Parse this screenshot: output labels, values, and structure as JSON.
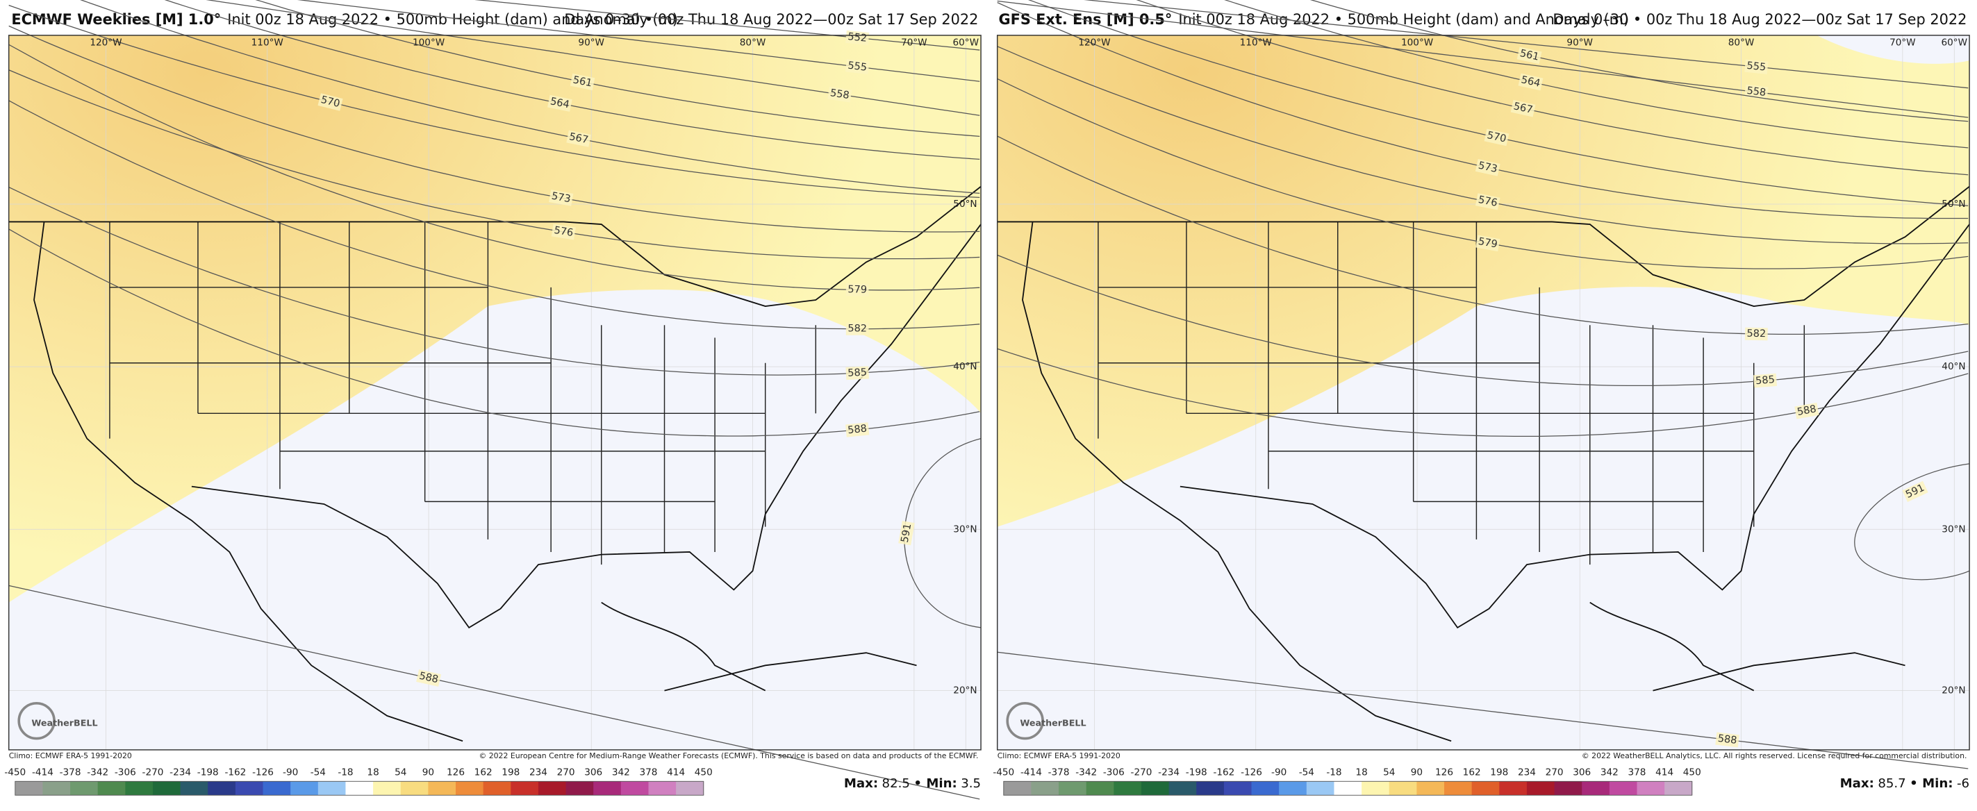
{
  "panels": [
    {
      "title_model": "ECMWF Weeklies [M] 1.0°",
      "title_desc": "Init 00z 18 Aug 2022 • 500mb Height (dam) and Anomaly (m)",
      "title_range": "Days 0–30 • 00z Thu 18 Aug 2022—00z Sat 17 Sep 2022",
      "longitudes": [
        "120°W",
        "110°W",
        "100°W",
        "90°W",
        "80°W",
        "70°W",
        "60°W"
      ],
      "latitudes": [
        "50°N",
        "40°N",
        "30°N",
        "20°N"
      ],
      "contour_labels": [
        552,
        555,
        558,
        561,
        564,
        567,
        570,
        573,
        576,
        579,
        582,
        585,
        588,
        591,
        588
      ],
      "logo": "WeatherBELL",
      "climo": "Climo: ECMWF ERA-5 1991-2020",
      "copyright": "© 2022 European Centre for Medium-Range Weather Forecasts (ECMWF). This service is based on data and products of the ECMWF.",
      "max_label": "Max:",
      "max": 82.5,
      "min_label": "• Min:",
      "min": 3.5
    },
    {
      "title_model": "GFS Ext. Ens [M] 0.5°",
      "title_desc": "Init 00z 18 Aug 2022 • 500mb Height (dam) and Anomaly (m)",
      "title_range": "Days 0–30 • 00z Thu 18 Aug 2022—00z Sat 17 Sep 2022",
      "longitudes": [
        "120°W",
        "110°W",
        "100°W",
        "90°W",
        "80°W",
        "70°W",
        "60°W"
      ],
      "latitudes": [
        "50°N",
        "40°N",
        "30°N",
        "20°N"
      ],
      "contour_labels": [
        555,
        558,
        561,
        564,
        567,
        570,
        573,
        576,
        579,
        582,
        585,
        588,
        591,
        588
      ],
      "logo": "WeatherBELL",
      "climo": "Climo: ECMWF ERA-5 1991-2020",
      "copyright": "© 2022 WeatherBELL Analytics, LLC. All rights reserved. License required for commercial distribution.",
      "max_label": "Max:",
      "max": 85.7,
      "min_label": "• Min:",
      "min": -6.0
    }
  ],
  "colorbar": {
    "ticks": [
      -450,
      -414,
      -378,
      -342,
      -306,
      -270,
      -234,
      -198,
      -162,
      -126,
      -90,
      -54,
      -18,
      18,
      54,
      90,
      126,
      162,
      198,
      234,
      270,
      306,
      342,
      378,
      414,
      450
    ],
    "colors": [
      "#9a9a9a",
      "#8aa08a",
      "#6f9a6f",
      "#4f8a4f",
      "#2f7a3f",
      "#1f6a3a",
      "#2a5a6a",
      "#2a3a8a",
      "#3a4ab0",
      "#3a6ad0",
      "#5a9ae8",
      "#9ac8f4",
      "#ffffff",
      "#fdf5b0",
      "#f8dc80",
      "#f4b858",
      "#ee8c3a",
      "#e0602a",
      "#c8302a",
      "#a81a2a",
      "#901a4a",
      "#a82a7a",
      "#c04aa0",
      "#d080c0",
      "#c8a8c8"
    ]
  }
}
